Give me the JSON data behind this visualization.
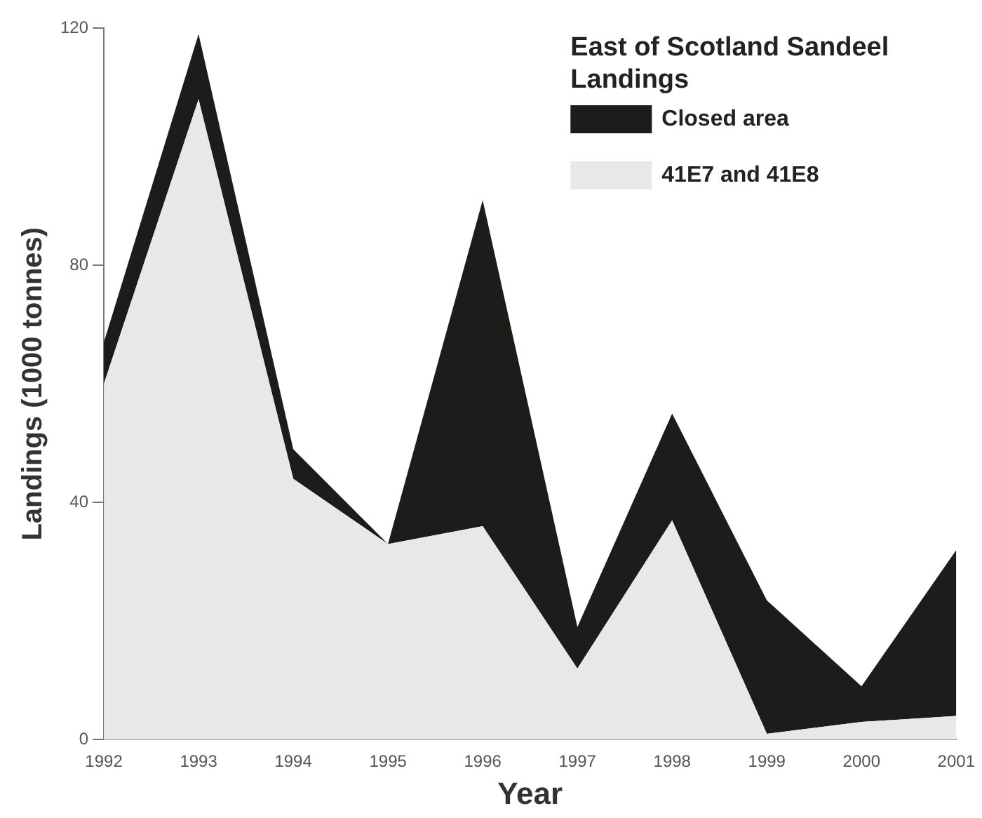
{
  "chart_data": {
    "type": "area",
    "xlabel": "Year",
    "ylabel": "Landings (1000 tonnes)",
    "legend_title": "East of Scotland Sandeel Landings",
    "categories": [
      "1992",
      "1993",
      "1994",
      "1995",
      "1996",
      "1997",
      "1998",
      "1999",
      "2000",
      "2001"
    ],
    "stacked": true,
    "ylim": [
      0,
      120
    ],
    "yticks": [
      0,
      40,
      80,
      120
    ],
    "grid": false,
    "legend": "top right",
    "series": [
      {
        "name": "41E7 and 41E8",
        "color": "#e8e8e8",
        "values": [
          60,
          108,
          44,
          33,
          36,
          12,
          37,
          1,
          3,
          4
        ]
      },
      {
        "name": "Closed area",
        "color": "#1e1c1a",
        "values": [
          7,
          11,
          5,
          0,
          55,
          7,
          18,
          22.5,
          6,
          28
        ]
      }
    ]
  }
}
